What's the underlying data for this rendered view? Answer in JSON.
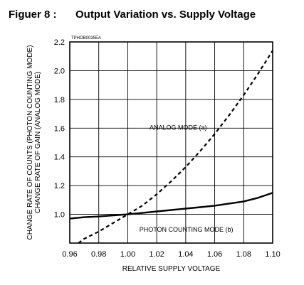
{
  "figure": {
    "number_label": "Figuer 8 :",
    "title": "Output Variation vs. Supply Voltage",
    "code": "TPHOB0035EA"
  },
  "chart_data": {
    "type": "line",
    "xlabel": "RELATIVE SUPPLY VOLTAGE",
    "ylabel_lines": [
      "CHANGE RATE OF COUNTS (PHOTON COUNTING MODE)",
      "CHANGE RATE OF GAIN (ANALOG MODE)"
    ],
    "xlim": [
      0.96,
      1.1
    ],
    "ylim": [
      0.8,
      2.2
    ],
    "x_ticks": [
      0.96,
      0.98,
      1.0,
      1.02,
      1.04,
      1.06,
      1.08,
      1.1
    ],
    "x_tick_labels": [
      "0.96",
      "0.98",
      "1.00",
      "1.02",
      "1.04",
      "1.06",
      "1.08",
      "1.10"
    ],
    "y_ticks": [
      1.0,
      1.2,
      1.4,
      1.6,
      1.8,
      2.0,
      2.2
    ],
    "y_tick_labels": [
      "1.0",
      "1.2",
      "1.4",
      "1.6",
      "1.8",
      "2.0",
      "2.2"
    ],
    "grid": true,
    "series": [
      {
        "name": "ANALOG MODE (a)",
        "style": "dashed",
        "color": "#000000",
        "x": [
          0.966,
          0.97,
          0.98,
          0.99,
          1.0,
          1.01,
          1.02,
          1.03,
          1.04,
          1.05,
          1.06,
          1.07,
          1.08,
          1.09,
          1.1
        ],
        "y": [
          0.8,
          0.83,
          0.88,
          0.94,
          1.0,
          1.06,
          1.14,
          1.23,
          1.33,
          1.44,
          1.56,
          1.69,
          1.83,
          1.98,
          2.14
        ]
      },
      {
        "name": "PHOTON COUNTING MODE (b)",
        "style": "solid",
        "color": "#000000",
        "x": [
          0.96,
          0.97,
          0.98,
          0.99,
          1.0,
          1.01,
          1.02,
          1.03,
          1.04,
          1.05,
          1.06,
          1.07,
          1.08,
          1.09,
          1.1
        ],
        "y": [
          0.97,
          0.98,
          0.985,
          0.993,
          1.0,
          1.01,
          1.02,
          1.03,
          1.04,
          1.05,
          1.06,
          1.075,
          1.09,
          1.115,
          1.15
        ]
      }
    ],
    "annotations": [
      {
        "text": "ANALOG MODE (a)",
        "x": 1.015,
        "y": 1.59
      },
      {
        "text": "PHOTON COUNTING MODE (b)",
        "x": 1.008,
        "y": 0.88
      }
    ]
  }
}
